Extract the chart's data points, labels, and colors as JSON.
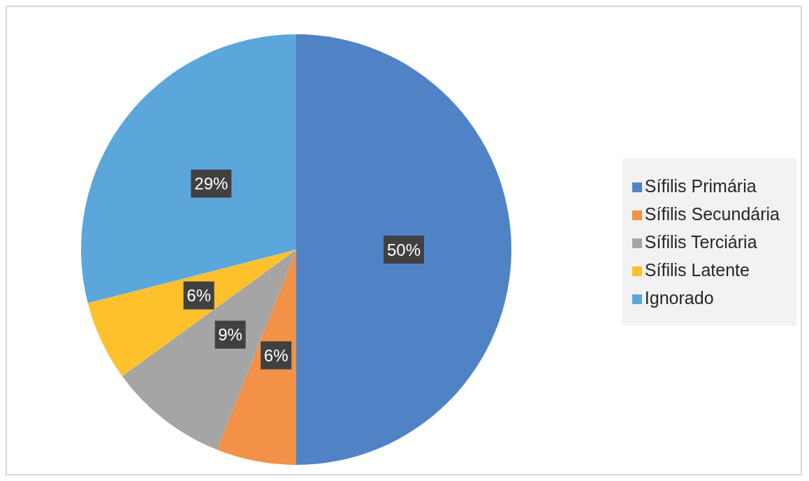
{
  "chart_data": {
    "type": "pie",
    "categories": [
      "Sífilis Primária",
      "Sífilis Secundária",
      "Sífilis Terciária",
      "Sífilis Latente",
      "Ignorado"
    ],
    "values": [
      50,
      6,
      9,
      6,
      29
    ],
    "colors": [
      "#4f83c6",
      "#f29147",
      "#a5a5a5",
      "#fdc12c",
      "#5ba7dc"
    ],
    "value_labels": [
      "50%",
      "6%",
      "9%",
      "6%",
      "29%"
    ],
    "legend": "right"
  }
}
